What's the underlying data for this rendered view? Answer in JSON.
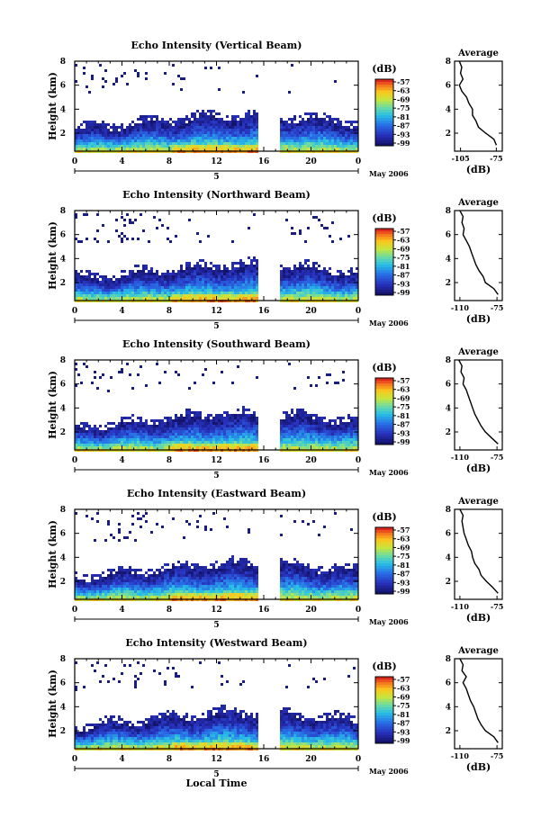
{
  "chart_data": [
    {
      "type": "heatmap",
      "title": "Echo Intensity (Vertical Beam)",
      "ylabel": "Height (km)",
      "x_ticks": [
        "0",
        "4",
        "8",
        "12",
        "16",
        "20",
        "0"
      ],
      "y_ticks": [
        "2",
        "4",
        "6",
        "8"
      ],
      "xlim": [
        0,
        24
      ],
      "ylim": [
        0.5,
        8
      ],
      "date_label": "May 2006",
      "day_label": "5",
      "data_gap_hours": [
        15.5,
        17.3
      ],
      "colorbar": {
        "unit": "(dB)",
        "ticks": [
          "-57",
          "-63",
          "-69",
          "-75",
          "-81",
          "-87",
          "-93",
          "-99"
        ],
        "range": [
          -100,
          -56
        ]
      },
      "average": {
        "title": "Average",
        "xlabel": "(dB)",
        "x_ticks": [
          "-105",
          "-75"
        ],
        "xlim": [
          -110,
          -70
        ],
        "y_ticks": [
          "2",
          "4",
          "6",
          "8"
        ],
        "heights": [
          1,
          1.5,
          2,
          2.5,
          3,
          3.5,
          4,
          4.5,
          5,
          5.5,
          6,
          6.5,
          7,
          7.5,
          8
        ],
        "values": [
          -75,
          -77,
          -84,
          -90,
          -92,
          -95,
          -95,
          -98,
          -100,
          -104,
          -106,
          -103,
          -105,
          -104,
          -106
        ]
      }
    },
    {
      "type": "heatmap",
      "title": "Echo Intensity (Northward Beam)",
      "ylabel": "Height (km)",
      "x_ticks": [
        "0",
        "4",
        "8",
        "12",
        "16",
        "20",
        "0"
      ],
      "y_ticks": [
        "2",
        "4",
        "6",
        "8"
      ],
      "xlim": [
        0,
        24
      ],
      "ylim": [
        0.5,
        8
      ],
      "date_label": "May 2006",
      "day_label": "5",
      "data_gap_hours": [
        15.5,
        17.3
      ],
      "colorbar": {
        "unit": "(dB)",
        "ticks": [
          "-57",
          "-63",
          "-69",
          "-75",
          "-81",
          "-87",
          "-93",
          "-99"
        ],
        "range": [
          -100,
          -56
        ]
      },
      "average": {
        "title": "Average",
        "xlabel": "(dB)",
        "x_ticks": [
          "-110",
          "-75"
        ],
        "xlim": [
          -115,
          -70
        ],
        "y_ticks": [
          "2",
          "4",
          "6",
          "8"
        ],
        "heights": [
          1,
          1.5,
          2,
          2.5,
          3,
          3.5,
          4,
          4.5,
          5,
          5.5,
          6,
          6.5,
          7,
          7.5,
          8
        ],
        "values": [
          -74,
          -78,
          -86,
          -88,
          -92,
          -95,
          -97,
          -99,
          -101,
          -104,
          -107,
          -106,
          -108,
          -107,
          -110
        ]
      }
    },
    {
      "type": "heatmap",
      "title": "Echo Intensity (Southward Beam)",
      "ylabel": "Height (km)",
      "x_ticks": [
        "0",
        "4",
        "8",
        "12",
        "16",
        "20",
        "0"
      ],
      "y_ticks": [
        "2",
        "4",
        "6",
        "8"
      ],
      "xlim": [
        0,
        24
      ],
      "ylim": [
        0.5,
        8
      ],
      "date_label": "May 2006",
      "day_label": "5",
      "data_gap_hours": [
        15.5,
        17.3
      ],
      "colorbar": {
        "unit": "(dB)",
        "ticks": [
          "-57",
          "-63",
          "-69",
          "-75",
          "-81",
          "-87",
          "-93",
          "-99"
        ],
        "range": [
          -100,
          -56
        ]
      },
      "average": {
        "title": "Average",
        "xlabel": "(dB)",
        "x_ticks": [
          "-110",
          "-75"
        ],
        "xlim": [
          -115,
          -70
        ],
        "y_ticks": [
          "2",
          "4",
          "6",
          "8"
        ],
        "heights": [
          1,
          1.5,
          2,
          2.5,
          3,
          3.5,
          4,
          4.5,
          5,
          5.5,
          6,
          6.5,
          7,
          7.5,
          8
        ],
        "values": [
          -74,
          -80,
          -86,
          -90,
          -93,
          -96,
          -98,
          -100,
          -102,
          -104,
          -107,
          -106,
          -109,
          -108,
          -111
        ]
      }
    },
    {
      "type": "heatmap",
      "title": "Echo Intensity (Eastward Beam)",
      "ylabel": "Height (km)",
      "x_ticks": [
        "0",
        "4",
        "8",
        "12",
        "16",
        "20",
        "0"
      ],
      "y_ticks": [
        "2",
        "4",
        "6",
        "8"
      ],
      "xlim": [
        0,
        24
      ],
      "ylim": [
        0.5,
        8
      ],
      "date_label": "May 2006",
      "day_label": "5",
      "data_gap_hours": [
        15.5,
        17.3
      ],
      "colorbar": {
        "unit": "(dB)",
        "ticks": [
          "-57",
          "-63",
          "-69",
          "-75",
          "-81",
          "-87",
          "-93",
          "-99"
        ],
        "range": [
          -100,
          -56
        ]
      },
      "average": {
        "title": "Average",
        "xlabel": "(dB)",
        "x_ticks": [
          "-110",
          "-75"
        ],
        "xlim": [
          -115,
          -70
        ],
        "y_ticks": [
          "2",
          "4",
          "6",
          "8"
        ],
        "heights": [
          1,
          1.5,
          2,
          2.5,
          3,
          3.5,
          4,
          4.5,
          5,
          5.5,
          6,
          6.5,
          7,
          7.5,
          8
        ],
        "values": [
          -74,
          -79,
          -85,
          -90,
          -92,
          -96,
          -98,
          -99,
          -102,
          -104,
          -106,
          -107,
          -108,
          -107,
          -110
        ]
      }
    },
    {
      "type": "heatmap",
      "title": "Echo Intensity (Westward Beam)",
      "ylabel": "Height (km)",
      "xlabel": "Local Time",
      "x_ticks": [
        "0",
        "4",
        "8",
        "12",
        "16",
        "20",
        "0"
      ],
      "y_ticks": [
        "2",
        "4",
        "6",
        "8"
      ],
      "xlim": [
        0,
        24
      ],
      "ylim": [
        0.5,
        8
      ],
      "date_label": "May 2006",
      "day_label": "5",
      "data_gap_hours": [
        15.5,
        17.3
      ],
      "colorbar": {
        "unit": "(dB)",
        "ticks": [
          "-57",
          "-63",
          "-69",
          "-75",
          "-81",
          "-87",
          "-93",
          "-99"
        ],
        "range": [
          -100,
          -56
        ]
      },
      "average": {
        "title": "Average",
        "xlabel": "(dB)",
        "x_ticks": [
          "-110",
          "-75"
        ],
        "xlim": [
          -115,
          -70
        ],
        "y_ticks": [
          "2",
          "4",
          "6",
          "8"
        ],
        "heights": [
          1,
          1.5,
          2,
          2.5,
          3,
          3.5,
          4,
          4.5,
          5,
          5.5,
          6,
          6.5,
          7,
          7.5,
          8
        ],
        "values": [
          -74,
          -78,
          -86,
          -90,
          -93,
          -95,
          -97,
          -100,
          -102,
          -104,
          -107,
          -104,
          -108,
          -107,
          -110
        ]
      }
    }
  ]
}
